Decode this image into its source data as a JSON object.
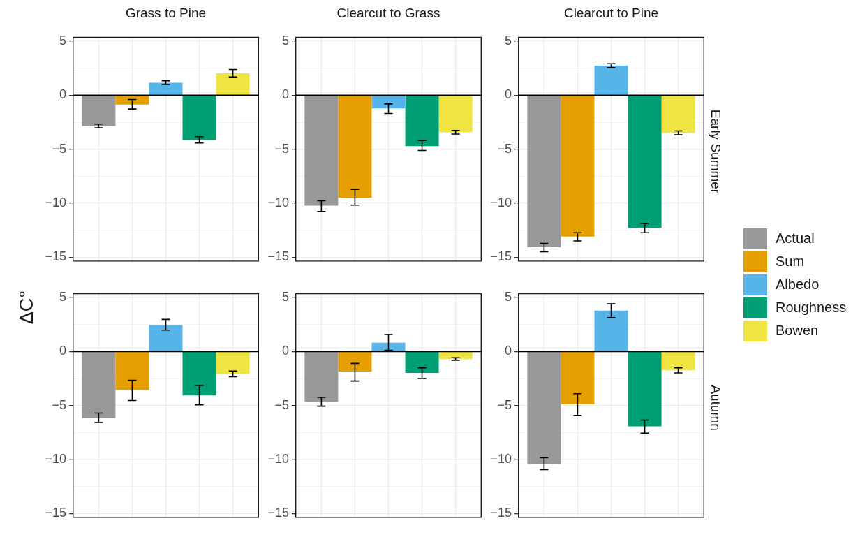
{
  "chart_data": [
    {
      "type": "bar",
      "title": "Grass to Pine",
      "ylabel": "ΔC°",
      "categories": [
        null
      ],
      "series": [
        {
          "color": "#999999",
          "values": [
            -2.85
          ],
          "errors": [
            [
              -3.02,
              -2.68
            ]
          ]
        },
        {
          "color": "#e69f00",
          "values": [
            -0.87
          ],
          "errors": [
            [
              -1.28,
              -0.4
            ]
          ]
        },
        {
          "color": "#56b4e9",
          "values": [
            1.16
          ],
          "errors": [
            [
              0.99,
              1.34
            ]
          ]
        },
        {
          "color": "#009e73",
          "values": [
            -4.13
          ],
          "errors": [
            [
              -4.42,
              -3.84
            ]
          ]
        },
        {
          "color": "#f0e442",
          "values": [
            2.03
          ],
          "errors": [
            [
              1.69,
              2.38
            ]
          ]
        }
      ],
      "ylim": [
        -15.4,
        5.4
      ],
      "yticks": [
        {
          "value": -15,
          "label": "−15"
        },
        {
          "value": -12.5,
          "label": null
        },
        {
          "value": -10,
          "label": "−10"
        },
        {
          "value": -7.5,
          "label": null
        },
        {
          "value": -5,
          "label": "−5"
        },
        {
          "value": -2.5,
          "label": null
        },
        {
          "value": 0,
          "label": "0"
        },
        {
          "value": 2.5,
          "label": null
        },
        {
          "value": 5,
          "label": "5"
        }
      ],
      "grid": true,
      "ref_lines": [
        {
          "axis": "y",
          "value": 0
        }
      ]
    },
    {
      "type": "bar",
      "title": "Clearcut to Grass",
      "categories": [
        null
      ],
      "series": [
        {
          "color": "#999999",
          "values": [
            -10.23
          ],
          "errors": [
            [
              -10.76,
              -9.77
            ]
          ]
        },
        {
          "color": "#e69f00",
          "values": [
            -9.48
          ],
          "errors": [
            [
              -10.17,
              -8.72
            ]
          ]
        },
        {
          "color": "#56b4e9",
          "values": [
            -1.22
          ],
          "errors": [
            [
              -1.69,
              -0.81
            ]
          ]
        },
        {
          "color": "#009e73",
          "values": [
            -4.71
          ],
          "errors": [
            [
              -5.12,
              -4.19
            ]
          ]
        },
        {
          "color": "#f0e442",
          "values": [
            -3.43
          ],
          "errors": [
            [
              -3.6,
              -3.26
            ]
          ]
        }
      ],
      "ylim": [
        -15.4,
        5.4
      ],
      "yticks": [
        {
          "value": -15,
          "label": "−15"
        },
        {
          "value": -12.5,
          "label": null
        },
        {
          "value": -10,
          "label": "−10"
        },
        {
          "value": -7.5,
          "label": null
        },
        {
          "value": -5,
          "label": "−5"
        },
        {
          "value": -2.5,
          "label": null
        },
        {
          "value": 0,
          "label": "0"
        },
        {
          "value": 2.5,
          "label": null
        },
        {
          "value": 5,
          "label": "5"
        }
      ],
      "grid": true,
      "ref_lines": [
        {
          "axis": "y",
          "value": 0
        }
      ]
    },
    {
      "type": "bar",
      "title": "Clearcut to Pine",
      "y2label": "Early Summer",
      "legend": "right",
      "categories": [
        null
      ],
      "series": [
        {
          "name": "Actual",
          "color": "#999999",
          "values": [
            -14.07
          ],
          "errors": [
            [
              -14.48,
              -13.72
            ]
          ]
        },
        {
          "name": "Sum",
          "color": "#e69f00",
          "values": [
            -13.08
          ],
          "errors": [
            [
              -13.49,
              -12.73
            ]
          ]
        },
        {
          "name": "Albedo",
          "color": "#56b4e9",
          "values": [
            2.73
          ],
          "errors": [
            [
              2.56,
              2.91
            ]
          ]
        },
        {
          "name": "Roughness",
          "color": "#009e73",
          "values": [
            -12.27
          ],
          "errors": [
            [
              -12.73,
              -11.86
            ]
          ]
        },
        {
          "name": "Bowen",
          "color": "#f0e442",
          "values": [
            -3.49
          ],
          "errors": [
            [
              -3.66,
              -3.31
            ]
          ]
        }
      ],
      "ylim": [
        -15.4,
        5.4
      ],
      "yticks": [
        {
          "value": -15,
          "label": "−15"
        },
        {
          "value": -12.5,
          "label": null
        },
        {
          "value": -10,
          "label": "−10"
        },
        {
          "value": -7.5,
          "label": null
        },
        {
          "value": -5,
          "label": "−5"
        },
        {
          "value": -2.5,
          "label": null
        },
        {
          "value": 0,
          "label": "0"
        },
        {
          "value": 2.5,
          "label": null
        },
        {
          "value": 5,
          "label": "5"
        }
      ],
      "grid": true,
      "ref_lines": [
        {
          "axis": "y",
          "value": 0
        }
      ]
    },
    {
      "type": "bar",
      "categories": [
        null
      ],
      "series": [
        {
          "color": "#999999",
          "values": [
            -6.16
          ],
          "errors": [
            [
              -6.57,
              -5.7
            ]
          ]
        },
        {
          "color": "#e69f00",
          "values": [
            -3.55
          ],
          "errors": [
            [
              -4.53,
              -2.67
            ]
          ]
        },
        {
          "color": "#56b4e9",
          "values": [
            2.44
          ],
          "errors": [
            [
              1.98,
              2.97
            ]
          ]
        },
        {
          "color": "#009e73",
          "values": [
            -4.07
          ],
          "errors": [
            [
              -4.94,
              -3.14
            ]
          ]
        },
        {
          "color": "#f0e442",
          "values": [
            -2.09
          ],
          "errors": [
            [
              -2.33,
              -1.8
            ]
          ]
        }
      ],
      "ylim": [
        -15.4,
        5.4
      ],
      "yticks": [
        {
          "value": -15,
          "label": "−15"
        },
        {
          "value": -12.5,
          "label": null
        },
        {
          "value": -10,
          "label": "−10"
        },
        {
          "value": -7.5,
          "label": null
        },
        {
          "value": -5,
          "label": "−5"
        },
        {
          "value": -2.5,
          "label": null
        },
        {
          "value": 0,
          "label": "0"
        },
        {
          "value": 2.5,
          "label": null
        },
        {
          "value": 5,
          "label": "5"
        }
      ],
      "grid": true,
      "ref_lines": [
        {
          "axis": "y",
          "value": 0
        }
      ]
    },
    {
      "type": "bar",
      "categories": [
        null
      ],
      "series": [
        {
          "color": "#999999",
          "values": [
            -4.65
          ],
          "errors": [
            [
              -5.06,
              -4.24
            ]
          ]
        },
        {
          "color": "#e69f00",
          "values": [
            -1.86
          ],
          "errors": [
            [
              -2.73,
              -1.1
            ]
          ]
        },
        {
          "color": "#56b4e9",
          "values": [
            0.81
          ],
          "errors": [
            [
              0.12,
              1.57
            ]
          ]
        },
        {
          "color": "#009e73",
          "values": [
            -1.98
          ],
          "errors": [
            [
              -2.5,
              -1.51
            ]
          ]
        },
        {
          "color": "#f0e442",
          "values": [
            -0.7
          ],
          "errors": [
            [
              -0.81,
              -0.58
            ]
          ]
        }
      ],
      "ylim": [
        -15.4,
        5.4
      ],
      "yticks": [
        {
          "value": -15,
          "label": "−15"
        },
        {
          "value": -12.5,
          "label": null
        },
        {
          "value": -10,
          "label": "−10"
        },
        {
          "value": -7.5,
          "label": null
        },
        {
          "value": -5,
          "label": "−5"
        },
        {
          "value": -2.5,
          "label": null
        },
        {
          "value": 0,
          "label": "0"
        },
        {
          "value": 2.5,
          "label": null
        },
        {
          "value": 5,
          "label": "5"
        }
      ],
      "grid": true,
      "ref_lines": [
        {
          "axis": "y",
          "value": 0
        }
      ]
    },
    {
      "type": "bar",
      "y2label": "Autumn",
      "categories": [
        null
      ],
      "series": [
        {
          "color": "#999999",
          "values": [
            -10.41
          ],
          "errors": [
            [
              -10.93,
              -9.83
            ]
          ]
        },
        {
          "color": "#e69f00",
          "values": [
            -4.88
          ],
          "errors": [
            [
              -5.93,
              -3.9
            ]
          ]
        },
        {
          "color": "#56b4e9",
          "values": [
            3.78
          ],
          "errors": [
            [
              3.14,
              4.42
            ]
          ]
        },
        {
          "color": "#009e73",
          "values": [
            -6.92
          ],
          "errors": [
            [
              -7.56,
              -6.34
            ]
          ]
        },
        {
          "color": "#f0e442",
          "values": [
            -1.74
          ],
          "errors": [
            [
              -1.98,
              -1.51
            ]
          ]
        }
      ],
      "ylim": [
        -15.4,
        5.4
      ],
      "yticks": [
        {
          "value": -15,
          "label": "−15"
        },
        {
          "value": -12.5,
          "label": null
        },
        {
          "value": -10,
          "label": "−10"
        },
        {
          "value": -7.5,
          "label": null
        },
        {
          "value": -5,
          "label": "−5"
        },
        {
          "value": -2.5,
          "label": null
        },
        {
          "value": 0,
          "label": "0"
        },
        {
          "value": 2.5,
          "label": null
        },
        {
          "value": 5,
          "label": "5"
        }
      ],
      "grid": true,
      "ref_lines": [
        {
          "axis": "y",
          "value": 0
        }
      ]
    }
  ]
}
